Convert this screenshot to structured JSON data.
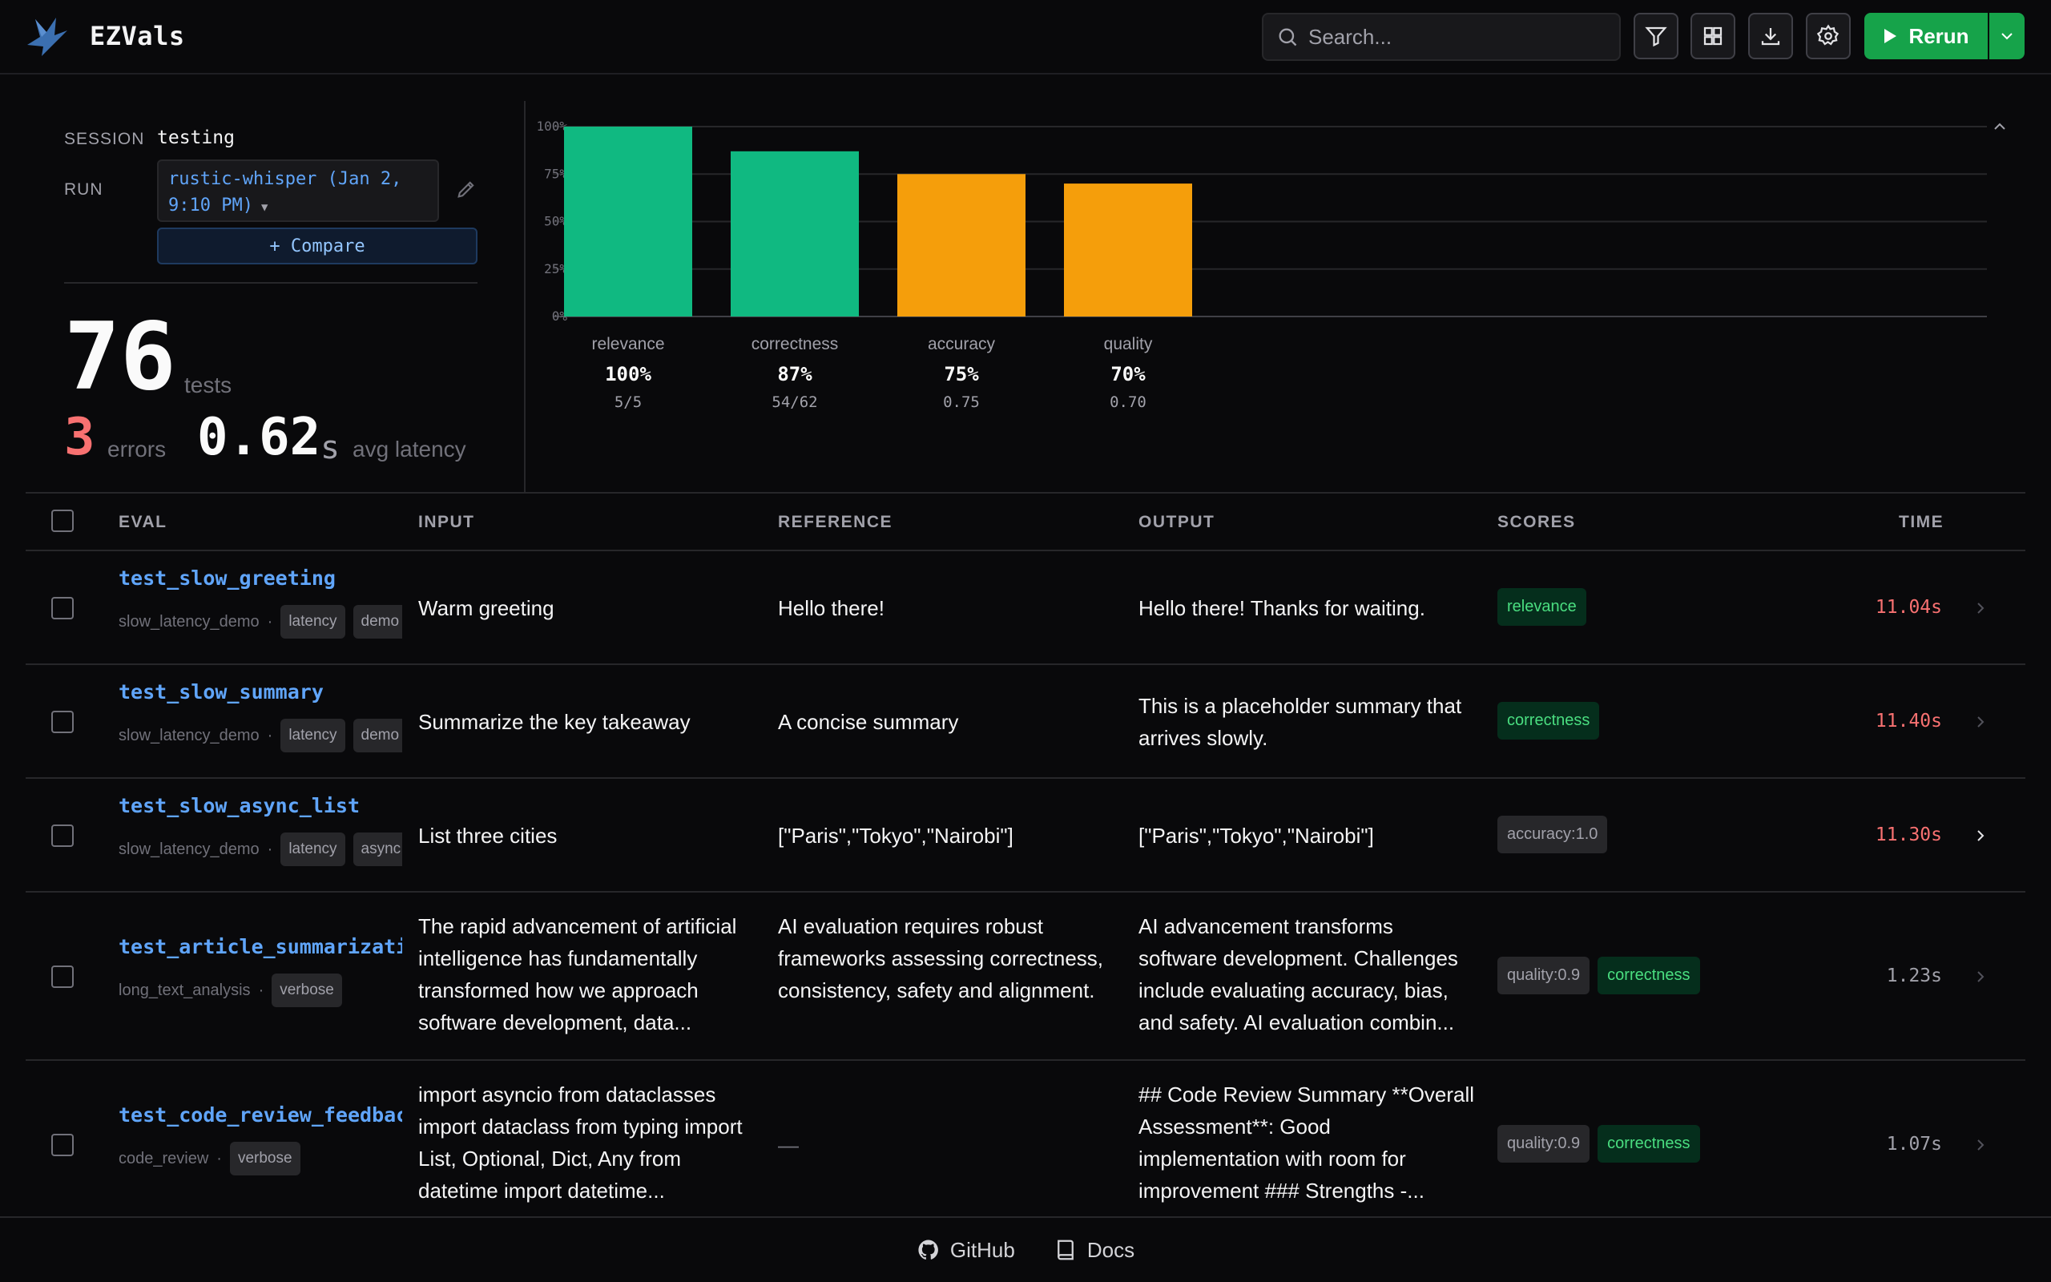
{
  "app": {
    "title": "EZVals"
  },
  "header": {
    "search_placeholder": "Search...",
    "rerun_label": "Rerun",
    "icons": [
      "filter-icon",
      "grid-icon",
      "download-icon",
      "settings-icon"
    ]
  },
  "summary": {
    "session_label": "SESSION",
    "session_value": "testing",
    "run_label": "RUN",
    "run_value_line1": "rustic-whisper (Jan 2,",
    "run_value_line2": "9:10 PM)",
    "compare_label": "+ Compare",
    "tests_count": "76",
    "tests_label": "tests",
    "errors_count": "3",
    "errors_label": "errors",
    "latency_value": "0.62",
    "latency_unit": "s",
    "latency_label": "avg latency"
  },
  "chart_data": {
    "type": "bar",
    "categories": [
      "relevance",
      "correctness",
      "accuracy",
      "quality"
    ],
    "values": [
      100,
      87,
      75,
      70
    ],
    "pct_labels": [
      "100%",
      "87%",
      "75%",
      "70%"
    ],
    "sub_labels": [
      "5/5",
      "54/62",
      "0.75",
      "0.70"
    ],
    "colors": [
      "#10b981",
      "#10b981",
      "#f59e0b",
      "#f59e0b"
    ],
    "ylim": [
      0,
      100
    ],
    "yticks": [
      "0%",
      "25%",
      "50%",
      "75%",
      "100%"
    ],
    "grid": true
  },
  "table": {
    "headers": {
      "eval": "EVAL",
      "input": "INPUT",
      "reference": "REFERENCE",
      "output": "OUTPUT",
      "scores": "SCORES",
      "time": "TIME"
    },
    "rows": [
      {
        "name": "test_slow_greeting",
        "dataset": "slow_latency_demo",
        "tags": [
          "latency",
          "demo"
        ],
        "input": "Warm greeting",
        "reference": "Hello there!",
        "output": "Hello there! Thanks for waiting.",
        "scores": [
          {
            "label": "relevance",
            "style": "green"
          }
        ],
        "time": "11.04s",
        "slow": true
      },
      {
        "name": "test_slow_summary",
        "dataset": "slow_latency_demo",
        "tags": [
          "latency",
          "demo"
        ],
        "input": "Summarize the key takeaway",
        "reference": "A concise summary",
        "output": "This is a placeholder summary that arrives slowly.",
        "scores": [
          {
            "label": "correctness",
            "style": "green"
          }
        ],
        "time": "11.40s",
        "slow": true
      },
      {
        "name": "test_slow_async_list",
        "dataset": "slow_latency_demo",
        "tags": [
          "latency",
          "async"
        ],
        "input": "List three cities",
        "reference": "[\"Paris\",\"Tokyo\",\"Nairobi\"]",
        "output": "[\"Paris\",\"Tokyo\",\"Nairobi\"]",
        "scores": [
          {
            "label": "accuracy:1.0",
            "style": "gray"
          }
        ],
        "time": "11.30s",
        "slow": true
      },
      {
        "name": "test_article_summarization",
        "dataset": "long_text_analysis",
        "tags": [
          "verbose"
        ],
        "input": "The rapid advancement of artificial intelligence has fundamentally transformed how we approach software development, data...",
        "reference": "AI evaluation requires robust frameworks assessing correctness, consistency, safety and alignment.",
        "output": "AI advancement transforms software development. Challenges include evaluating accuracy, bias, and safety. AI evaluation combin...",
        "scores": [
          {
            "label": "quality:0.9",
            "style": "gray"
          },
          {
            "label": "correctness",
            "style": "green"
          }
        ],
        "time": "1.23s",
        "slow": false
      },
      {
        "name": "test_code_review_feedback",
        "dataset": "code_review",
        "tags": [
          "verbose"
        ],
        "input": "import asyncio from dataclasses import dataclass from typing import List, Optional, Dict, Any from datetime import datetime...",
        "reference": "—",
        "output": "## Code Review Summary **Overall Assessment**: Good implementation with room for improvement ### Strengths -...",
        "scores": [
          {
            "label": "quality:0.9",
            "style": "gray"
          },
          {
            "label": "correctness",
            "style": "green"
          }
        ],
        "time": "1.07s",
        "slow": false
      }
    ]
  },
  "footer": {
    "github_label": "GitHub",
    "docs_label": "Docs"
  }
}
